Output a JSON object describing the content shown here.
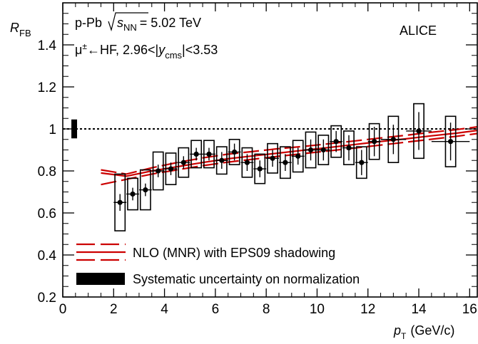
{
  "chart_data": {
    "type": "scatter",
    "xlabel": {
      "main": "p",
      "sub": "T",
      "unit": "(GeV/c)"
    },
    "ylabel": {
      "main": "R",
      "sub": "FB"
    },
    "xlim": [
      0,
      16.3
    ],
    "ylim": [
      0.2,
      1.6
    ],
    "x_ticks": [
      "0",
      "2",
      "4",
      "6",
      "8",
      "10",
      "12",
      "14",
      "16"
    ],
    "y_ticks": [
      "0.2",
      "0.4",
      "0.6",
      "0.8",
      "1",
      "1.2",
      "1.4"
    ],
    "annotations": {
      "system": "p-Pb",
      "energy_pre": "s",
      "energy_sub": "NN",
      "energy_post": "= 5.02 TeV",
      "experiment": "ALICE",
      "selection_pre": "μ",
      "selection_sup": "±",
      "selection_mid": "←HF, 2.96<|",
      "selection_y": "y",
      "selection_ysub": "cms",
      "selection_post": "|<3.53"
    },
    "legend": [
      {
        "label": "NLO (MNR) with EPS09 shadowing",
        "style": "red-dashed-band"
      },
      {
        "label": "Systematic uncertainty on normalization",
        "style": "black-box"
      }
    ],
    "reference_line": 1.0,
    "normalization_uncertainty": {
      "x": 0.45,
      "low": 0.955,
      "high": 1.045
    },
    "series": [
      {
        "points": [
          {
            "x": 2.25,
            "y": 0.65,
            "stat": 0.04,
            "sys": 0.135,
            "xerr": 0.25
          },
          {
            "x": 2.75,
            "y": 0.69,
            "stat": 0.03,
            "sys": 0.075,
            "xerr": 0.25
          },
          {
            "x": 3.25,
            "y": 0.71,
            "stat": 0.03,
            "sys": 0.095,
            "xerr": 0.25
          },
          {
            "x": 3.75,
            "y": 0.8,
            "stat": 0.03,
            "sys": 0.09,
            "xerr": 0.25
          },
          {
            "x": 4.25,
            "y": 0.81,
            "stat": 0.03,
            "sys": 0.075,
            "xerr": 0.25
          },
          {
            "x": 4.75,
            "y": 0.84,
            "stat": 0.03,
            "sys": 0.07,
            "xerr": 0.25
          },
          {
            "x": 5.25,
            "y": 0.88,
            "stat": 0.03,
            "sys": 0.065,
            "xerr": 0.25
          },
          {
            "x": 5.75,
            "y": 0.88,
            "stat": 0.03,
            "sys": 0.065,
            "xerr": 0.25
          },
          {
            "x": 6.25,
            "y": 0.85,
            "stat": 0.04,
            "sys": 0.065,
            "xerr": 0.25
          },
          {
            "x": 6.75,
            "y": 0.89,
            "stat": 0.04,
            "sys": 0.06,
            "xerr": 0.25
          },
          {
            "x": 7.25,
            "y": 0.84,
            "stat": 0.04,
            "sys": 0.07,
            "xerr": 0.25
          },
          {
            "x": 7.75,
            "y": 0.81,
            "stat": 0.04,
            "sys": 0.07,
            "xerr": 0.25
          },
          {
            "x": 8.25,
            "y": 0.86,
            "stat": 0.04,
            "sys": 0.07,
            "xerr": 0.25
          },
          {
            "x": 8.75,
            "y": 0.84,
            "stat": 0.04,
            "sys": 0.075,
            "xerr": 0.25
          },
          {
            "x": 9.25,
            "y": 0.87,
            "stat": 0.04,
            "sys": 0.075,
            "xerr": 0.25
          },
          {
            "x": 9.75,
            "y": 0.9,
            "stat": 0.05,
            "sys": 0.085,
            "xerr": 0.25
          },
          {
            "x": 10.25,
            "y": 0.9,
            "stat": 0.05,
            "sys": 0.07,
            "xerr": 0.25
          },
          {
            "x": 10.75,
            "y": 0.94,
            "stat": 0.05,
            "sys": 0.075,
            "xerr": 0.25
          },
          {
            "x": 11.25,
            "y": 0.91,
            "stat": 0.06,
            "sys": 0.08,
            "xerr": 0.25
          },
          {
            "x": 11.75,
            "y": 0.84,
            "stat": 0.06,
            "sys": 0.075,
            "xerr": 0.25
          },
          {
            "x": 12.25,
            "y": 0.94,
            "stat": 0.07,
            "sys": 0.085,
            "xerr": 0.25
          },
          {
            "x": 13.0,
            "y": 0.95,
            "stat": 0.07,
            "sys": 0.11,
            "xerr": 0.5
          },
          {
            "x": 14.0,
            "y": 0.99,
            "stat": 0.09,
            "sys": 0.13,
            "xerr": 0.5
          },
          {
            "x": 15.25,
            "y": 0.94,
            "stat": 0.09,
            "sys": 0.12,
            "xerr": 0.75
          }
        ]
      }
    ],
    "model_band": {
      "x": [
        1.5,
        2.5,
        3.5,
        4.5,
        5.5,
        6.5,
        7.5,
        8.5,
        9.5,
        10.5,
        11.5,
        12.5,
        13.5,
        14.5,
        15.5,
        16.3
      ],
      "upper": [
        0.805,
        0.785,
        0.815,
        0.84,
        0.862,
        0.88,
        0.893,
        0.906,
        0.917,
        0.93,
        0.943,
        0.957,
        0.97,
        0.984,
        0.997,
        1.01
      ],
      "central": [
        0.79,
        0.775,
        0.8,
        0.82,
        0.84,
        0.858,
        0.872,
        0.885,
        0.899,
        0.912,
        0.926,
        0.94,
        0.953,
        0.967,
        0.98,
        0.993
      ],
      "lower": [
        0.735,
        0.76,
        0.785,
        0.805,
        0.825,
        0.842,
        0.856,
        0.87,
        0.883,
        0.896,
        0.909,
        0.923,
        0.937,
        0.951,
        0.965,
        0.978
      ]
    }
  }
}
